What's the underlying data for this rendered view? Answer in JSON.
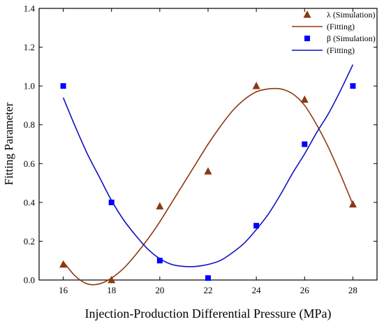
{
  "chart_data": {
    "type": "scatter",
    "xlabel": "Injection-Production Differential Pressure (MPa)",
    "ylabel": "Fitting Parameter",
    "xlim": [
      15,
      29
    ],
    "ylim": [
      0,
      1.4
    ],
    "xticks": [
      16,
      18,
      20,
      22,
      24,
      26,
      28
    ],
    "xtick_labels": [
      "16",
      "18",
      "20",
      "22",
      "24",
      "26",
      "28"
    ],
    "yticks": [
      0.0,
      0.2,
      0.4,
      0.6,
      0.8,
      1.0,
      1.2,
      1.4
    ],
    "ytick_labels": [
      "0.0",
      "0.2",
      "0.4",
      "0.6",
      "0.8",
      "1.0",
      "1.2",
      "1.4"
    ],
    "grid": false,
    "legend": "top-right",
    "series": [
      {
        "name": "λ (Simulation)",
        "kind": "scatter",
        "marker": "triangle",
        "color": "#8B3A0F",
        "x": [
          16,
          18,
          20,
          22,
          24,
          26,
          28
        ],
        "y": [
          0.08,
          0.0,
          0.38,
          0.56,
          1.0,
          0.93,
          0.39
        ]
      },
      {
        "name": "(Fitting)",
        "kind": "line",
        "color": "#8B3A0F",
        "x": [
          16,
          16.5,
          17,
          17.5,
          18,
          18.5,
          19,
          19.5,
          20,
          20.5,
          21,
          21.5,
          22,
          22.5,
          23,
          23.5,
          24,
          24.5,
          25,
          25.5,
          26,
          26.5,
          27,
          27.5,
          28
        ],
        "y": [
          0.095,
          0.02,
          -0.02,
          -0.02,
          0.01,
          0.06,
          0.13,
          0.21,
          0.3,
          0.4,
          0.5,
          0.6,
          0.7,
          0.79,
          0.87,
          0.93,
          0.97,
          0.985,
          0.985,
          0.96,
          0.9,
          0.8,
          0.68,
          0.54,
          0.39
        ]
      },
      {
        "name": "β (Simulation)",
        "kind": "scatter",
        "marker": "square",
        "color": "#0000FF",
        "x": [
          16,
          18,
          20,
          22,
          24,
          26,
          28
        ],
        "y": [
          1.0,
          0.4,
          0.1,
          0.01,
          0.28,
          0.7,
          1.0
        ]
      },
      {
        "name": "(Fitting)",
        "kind": "line",
        "color": "#1010C0",
        "x": [
          16,
          16.5,
          17,
          17.5,
          18,
          18.5,
          19,
          19.5,
          20,
          20.5,
          21,
          21.5,
          22,
          22.5,
          23,
          23.5,
          24,
          24.5,
          25,
          25.5,
          26,
          26.5,
          27,
          27.5,
          28
        ],
        "y": [
          0.94,
          0.79,
          0.65,
          0.53,
          0.41,
          0.31,
          0.23,
          0.16,
          0.11,
          0.08,
          0.07,
          0.07,
          0.08,
          0.1,
          0.14,
          0.19,
          0.26,
          0.34,
          0.44,
          0.55,
          0.65,
          0.76,
          0.86,
          0.98,
          1.11
        ]
      }
    ]
  }
}
